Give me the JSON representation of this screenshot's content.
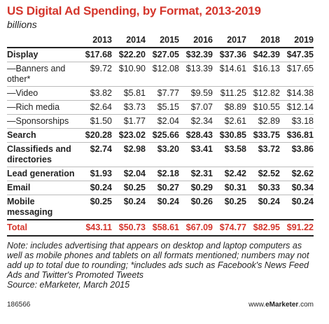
{
  "title": "US Digital Ad Spending, by Format, 2013-2019",
  "subtitle": "billions",
  "chart_data": {
    "type": "table",
    "columns": [
      "2013",
      "2014",
      "2015",
      "2016",
      "2017",
      "2018",
      "2019"
    ],
    "rows": [
      {
        "label": "Display",
        "style": "bold",
        "values": [
          "$17.68",
          "$22.20",
          "$27.05",
          "$32.39",
          "$37.36",
          "$42.39",
          "$47.35"
        ]
      },
      {
        "label": "—Banners and other*",
        "style": "sub",
        "values": [
          "$9.72",
          "$10.90",
          "$12.08",
          "$13.39",
          "$14.61",
          "$16.13",
          "$17.65"
        ]
      },
      {
        "label": "—Video",
        "style": "sub",
        "values": [
          "$3.82",
          "$5.81",
          "$7.77",
          "$9.59",
          "$11.25",
          "$12.82",
          "$14.38"
        ]
      },
      {
        "label": "—Rich media",
        "style": "sub",
        "values": [
          "$2.64",
          "$3.73",
          "$5.15",
          "$7.07",
          "$8.89",
          "$10.55",
          "$12.14"
        ]
      },
      {
        "label": "—Sponsorships",
        "style": "sub",
        "values": [
          "$1.50",
          "$1.77",
          "$2.04",
          "$2.34",
          "$2.61",
          "$2.89",
          "$3.18"
        ]
      },
      {
        "label": "Search",
        "style": "bold",
        "values": [
          "$20.28",
          "$23.02",
          "$25.66",
          "$28.43",
          "$30.85",
          "$33.75",
          "$36.81"
        ]
      },
      {
        "label": "Classifieds and directories",
        "style": "bold",
        "values": [
          "$2.74",
          "$2.98",
          "$3.20",
          "$3.41",
          "$3.58",
          "$3.72",
          "$3.86"
        ]
      },
      {
        "label": "Lead generation",
        "style": "bold",
        "values": [
          "$1.93",
          "$2.04",
          "$2.18",
          "$2.31",
          "$2.42",
          "$2.52",
          "$2.62"
        ]
      },
      {
        "label": "Email",
        "style": "bold",
        "values": [
          "$0.24",
          "$0.25",
          "$0.27",
          "$0.29",
          "$0.31",
          "$0.33",
          "$0.34"
        ]
      },
      {
        "label": "Mobile messaging",
        "style": "bold",
        "values": [
          "$0.25",
          "$0.24",
          "$0.24",
          "$0.26",
          "$0.25",
          "$0.24",
          "$0.24"
        ]
      }
    ],
    "total": {
      "label": "Total",
      "values": [
        "$43.11",
        "$50.73",
        "$58.61",
        "$67.09",
        "$74.77",
        "$82.95",
        "$91.22"
      ]
    }
  },
  "note": "Note: includes advertising that appears on desktop and laptop computers as well as mobile phones and tablets on all formats mentioned; numbers may not add up to total due to rounding; *includes ads such as Facebook's News Feed Ads and Twitter's Promoted Tweets",
  "source": "Source: eMarketer, March 2015",
  "footer": {
    "chart_id": "186566",
    "site_prefix": "www.",
    "site_brand": "eMarketer",
    "site_suffix": ".com"
  },
  "colors": {
    "accent": "#d4352b",
    "text": "#222222",
    "rule": "#bbbbbb"
  }
}
